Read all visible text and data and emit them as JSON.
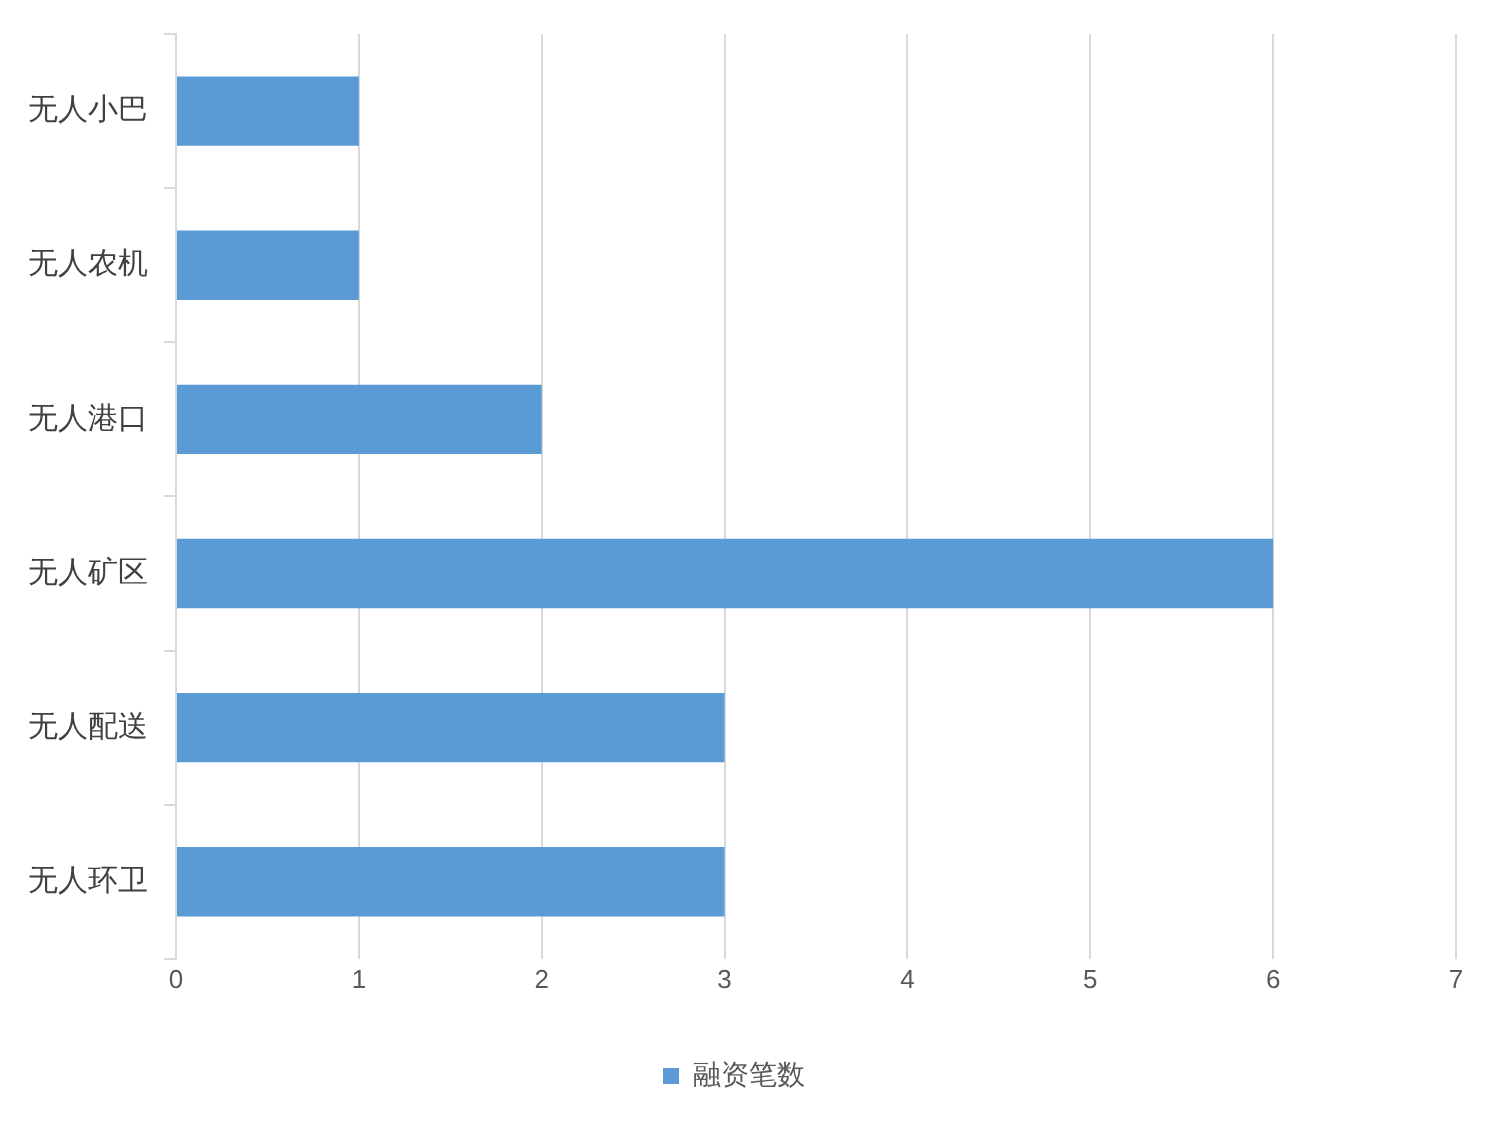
{
  "chart_data": {
    "type": "bar",
    "orientation": "horizontal",
    "categories": [
      "无人小巴",
      "无人农机",
      "无人港口",
      "无人矿区",
      "无人配送",
      "无人环卫"
    ],
    "series": [
      {
        "name": "融资笔数",
        "color": "#5b9bd5",
        "values": [
          1,
          1,
          2,
          6,
          3,
          3
        ]
      }
    ],
    "xlim": [
      0,
      7
    ],
    "xticks": [
      0,
      1,
      2,
      3,
      4,
      5,
      6,
      7
    ],
    "grid": "x",
    "legend": "bottom"
  }
}
